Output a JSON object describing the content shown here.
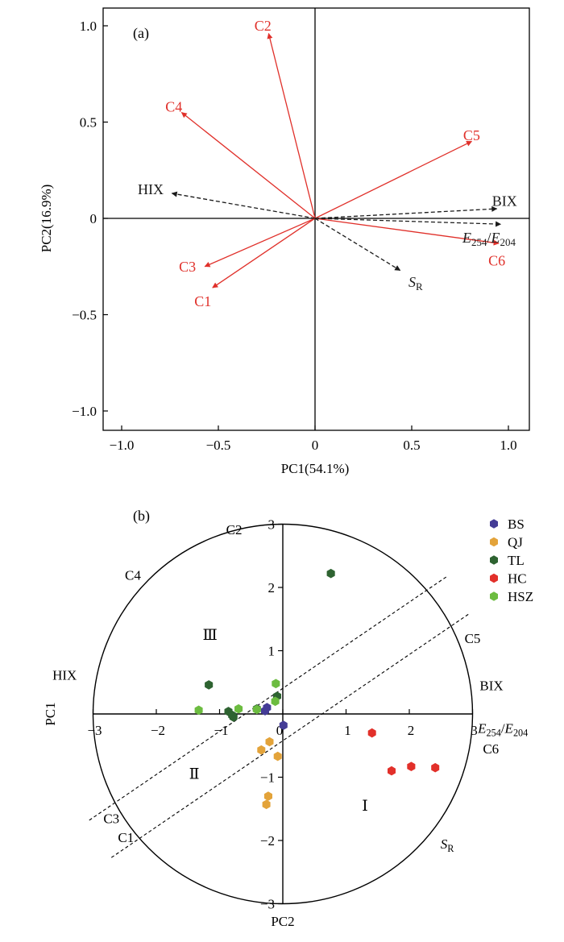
{
  "colors": {
    "loading": "#e0302a",
    "param": "#1a1a1a",
    "BS": "#443c96",
    "QJ": "#e3a33a",
    "TL": "#2e6331",
    "HC": "#e2302a",
    "HSZ": "#6cbc40"
  },
  "chart_data": [
    {
      "type": "scatter",
      "subtype": "pca-loading-biplot",
      "panel_label": "(a)",
      "xlabel": "PC1(54.1%)",
      "ylabel": "PC2(16.9%)",
      "xlim": [
        -1.1,
        1.1
      ],
      "ylim": [
        -1.1,
        1.1
      ],
      "xticks": [
        -1.0,
        -0.5,
        0,
        0.5,
        1.0
      ],
      "xtick_labels": [
        "−1.0",
        "−0.5",
        "0",
        "0.5",
        "1.0"
      ],
      "yticks": [
        -1.0,
        -0.5,
        0,
        0.5,
        1.0
      ],
      "ytick_labels": [
        "−1.0",
        "−0.5",
        "0",
        "0.5",
        "1.0"
      ],
      "vectors": [
        {
          "name": "C2",
          "x": -0.24,
          "y": 0.96,
          "style": "component",
          "lx": -0.27,
          "ly": 1.0
        },
        {
          "name": "C4",
          "x": -0.69,
          "y": 0.55,
          "style": "component",
          "lx": -0.73,
          "ly": 0.58
        },
        {
          "name": "C5",
          "x": 0.81,
          "y": 0.4,
          "style": "component",
          "lx": 0.81,
          "ly": 0.43
        },
        {
          "name": "C6",
          "x": 0.95,
          "y": -0.13,
          "style": "component",
          "lx": 0.94,
          "ly": -0.22
        },
        {
          "name": "C3",
          "x": -0.57,
          "y": -0.25,
          "style": "component",
          "lx": -0.66,
          "ly": -0.25
        },
        {
          "name": "C1",
          "x": -0.53,
          "y": -0.36,
          "style": "component",
          "lx": -0.58,
          "ly": -0.43
        },
        {
          "name": "HIX",
          "x": -0.74,
          "y": 0.13,
          "style": "parameter",
          "lx": -0.85,
          "ly": 0.15
        },
        {
          "name": "BIX",
          "x": 0.94,
          "y": 0.05,
          "style": "parameter",
          "lx": 0.98,
          "ly": 0.09
        },
        {
          "name": "E254/E204",
          "x": 0.96,
          "y": -0.03,
          "style": "parameter",
          "lx": 0.9,
          "ly": -0.1
        },
        {
          "name": "SR",
          "x": 0.44,
          "y": -0.27,
          "style": "parameter",
          "lx": 0.52,
          "ly": -0.33
        }
      ]
    },
    {
      "type": "scatter",
      "subtype": "pca-score-plot",
      "panel_label": "(b)",
      "xlabel": "PC2",
      "ylabel": "PC1",
      "xlim": [
        -3,
        3
      ],
      "ylim": [
        -3,
        3
      ],
      "xticks": [
        -3,
        -2,
        -1,
        0,
        1,
        2,
        3
      ],
      "xtick_labels": [
        "−3",
        "−2",
        "−1",
        "0",
        "1",
        "2",
        "3"
      ],
      "yticks": [
        -3,
        -2,
        -1,
        1,
        2,
        3
      ],
      "ytick_labels": [
        "−3",
        "−2",
        "−1",
        "1",
        "2",
        "3"
      ],
      "circle_radius": 3,
      "region_labels": [
        {
          "text": "Ⅰ",
          "x": 1.3,
          "y": -1.45
        },
        {
          "text": "Ⅱ",
          "x": -1.4,
          "y": -0.95
        },
        {
          "text": "Ⅲ",
          "x": -1.15,
          "y": 1.25
        }
      ],
      "direction_labels": [
        {
          "text": "C2",
          "x": -0.77,
          "y": 2.92
        },
        {
          "text": "C4",
          "x": -2.37,
          "y": 2.2
        },
        {
          "text": "HIX",
          "x": -3.45,
          "y": 0.62
        },
        {
          "text": "C5",
          "x": 3.0,
          "y": 1.2
        },
        {
          "text": "BIX",
          "x": 3.3,
          "y": 0.45
        },
        {
          "text": "E254/E204",
          "x": 3.48,
          "y": -0.22
        },
        {
          "text": "C6",
          "x": 3.29,
          "y": -0.55
        },
        {
          "text": "C3",
          "x": -2.71,
          "y": -1.65
        },
        {
          "text": "C1",
          "x": -2.48,
          "y": -1.95
        },
        {
          "text": "SR",
          "x": 2.6,
          "y": -2.05
        }
      ],
      "divider_lines": [
        {
          "x1": -3.06,
          "y1": -1.68,
          "x2": 2.59,
          "y2": 2.17
        },
        {
          "x1": -2.71,
          "y1": -2.27,
          "x2": 2.94,
          "y2": 1.58
        }
      ],
      "legend_position": "top-right",
      "series": [
        {
          "name": "BS",
          "color": "#443c96",
          "points": [
            [
              -0.25,
              0.1
            ],
            [
              -0.28,
              0.05
            ],
            [
              0.01,
              -0.18
            ]
          ]
        },
        {
          "name": "QJ",
          "color": "#e3a33a",
          "points": [
            [
              -0.34,
              -0.57
            ],
            [
              -0.21,
              -0.44
            ],
            [
              -0.08,
              -0.67
            ],
            [
              -0.23,
              -1.3
            ],
            [
              -0.26,
              -1.43
            ]
          ]
        },
        {
          "name": "TL",
          "color": "#2e6331",
          "points": [
            [
              0.76,
              2.22
            ],
            [
              -1.17,
              0.46
            ],
            [
              -0.86,
              0.04
            ],
            [
              -0.78,
              -0.05
            ],
            [
              -0.41,
              0.08
            ],
            [
              -0.09,
              0.28
            ],
            [
              -0.8,
              -0.02
            ]
          ]
        },
        {
          "name": "HC",
          "color": "#e2302a",
          "points": [
            [
              1.41,
              -0.3
            ],
            [
              1.72,
              -0.9
            ],
            [
              2.03,
              -0.83
            ],
            [
              2.41,
              -0.85
            ]
          ]
        },
        {
          "name": "HSZ",
          "color": "#6cbc40",
          "points": [
            [
              -1.33,
              0.06
            ],
            [
              -0.7,
              0.08
            ],
            [
              -0.41,
              0.07
            ],
            [
              -0.12,
              0.2
            ],
            [
              -0.11,
              0.48
            ]
          ]
        }
      ]
    }
  ]
}
